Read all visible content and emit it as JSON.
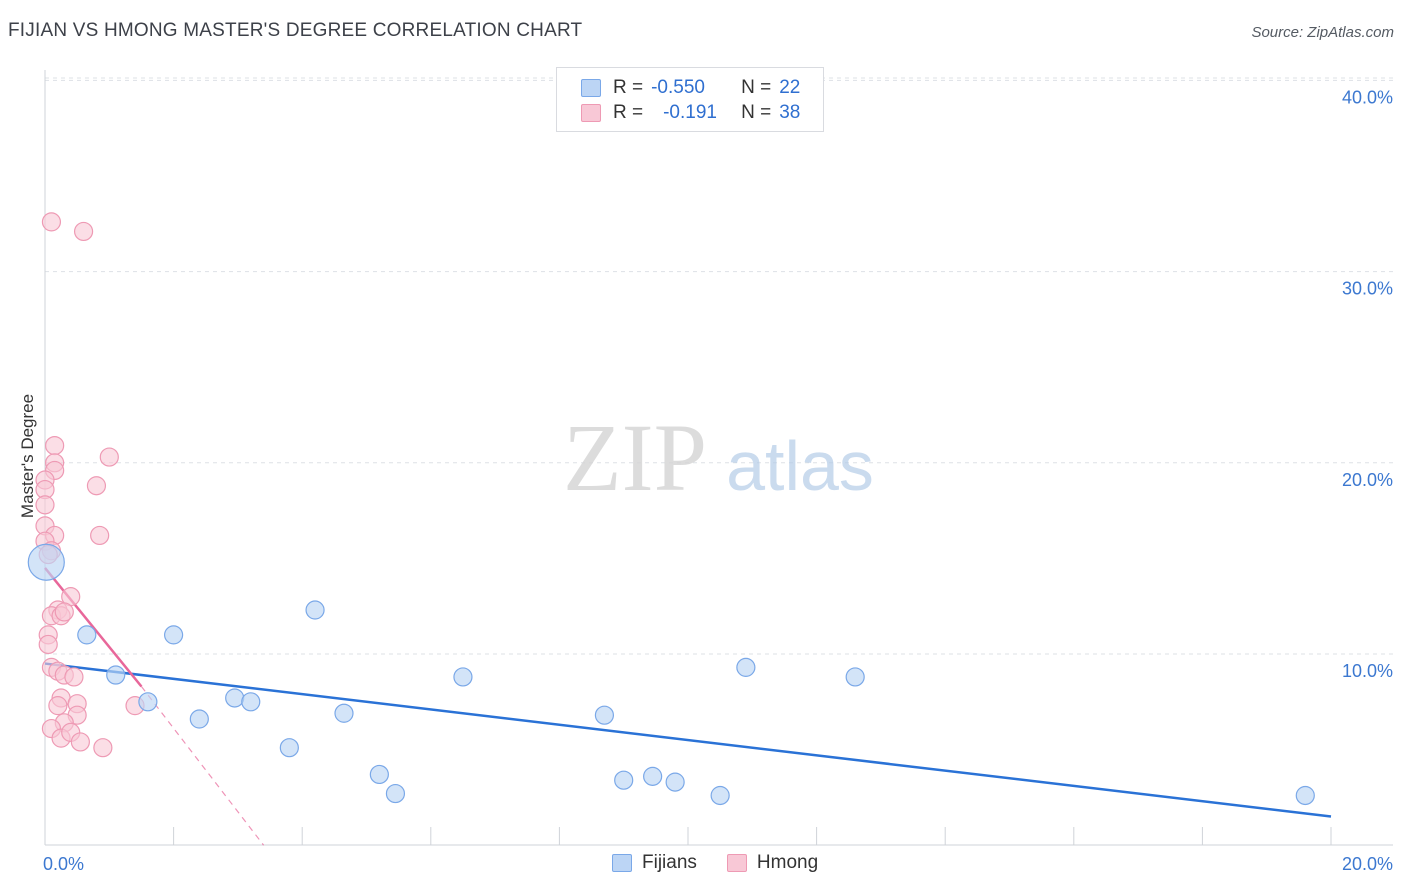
{
  "header": {
    "title": "FIJIAN VS HMONG MASTER'S DEGREE CORRELATION CHART",
    "source": "Source: ZipAtlas.com"
  },
  "watermark": {
    "zip": "ZIP",
    "atlas": "atlas"
  },
  "legend": {
    "rows": [
      {
        "r_label": "R =",
        "r_value": "-0.550",
        "n_label": "N =",
        "n_value": "22"
      },
      {
        "r_label": "R =",
        "r_value": "-0.191",
        "n_label": "N =",
        "n_value": "38"
      }
    ]
  },
  "bottom_legend": {
    "fijians": "Fijians",
    "hmong": "Hmong"
  },
  "colors": {
    "fijians_fill": "#bcd5f5",
    "fijians_stroke": "#7aa8e8",
    "fijians_line": "#2a72d6",
    "hmong_fill": "#f8c8d6",
    "hmong_stroke": "#ee9ab4",
    "hmong_line": "#e8679a",
    "tick_label": "#3c78d0",
    "grid": "#dde1e6"
  },
  "chart_data": {
    "type": "scatter",
    "title": "FIJIAN VS HMONG MASTER'S DEGREE CORRELATION CHART",
    "xlabel": "",
    "ylabel": "Master's Degree",
    "xlim": [
      0,
      20
    ],
    "ylim": [
      0,
      42
    ],
    "x_tick_labels": [
      "0.0%",
      "20.0%"
    ],
    "y_ticks": [
      10,
      20,
      30,
      40
    ],
    "y_tick_labels": [
      "10.0%",
      "20.0%",
      "30.0%",
      "40.0%"
    ],
    "grid": true,
    "series": [
      {
        "name": "Fijians",
        "points": [
          [
            0.02,
            14.8
          ],
          [
            0.65,
            11.0
          ],
          [
            1.1,
            8.9
          ],
          [
            1.6,
            7.5
          ],
          [
            2.0,
            11.0
          ],
          [
            2.4,
            6.6
          ],
          [
            2.95,
            7.7
          ],
          [
            3.2,
            7.5
          ],
          [
            3.8,
            5.1
          ],
          [
            4.2,
            12.3
          ],
          [
            4.65,
            6.9
          ],
          [
            5.2,
            3.7
          ],
          [
            5.45,
            2.7
          ],
          [
            6.5,
            8.8
          ],
          [
            8.7,
            6.8
          ],
          [
            9.0,
            3.4
          ],
          [
            9.45,
            3.6
          ],
          [
            9.8,
            3.3
          ],
          [
            10.5,
            2.6
          ],
          [
            10.9,
            9.3
          ],
          [
            12.6,
            8.8
          ],
          [
            19.6,
            2.6
          ]
        ],
        "trend": {
          "x": [
            0,
            20
          ],
          "y": [
            9.5,
            1.5
          ]
        }
      },
      {
        "name": "Hmong",
        "points": [
          [
            0.1,
            32.6
          ],
          [
            0.6,
            32.1
          ],
          [
            0.15,
            20.9
          ],
          [
            0.15,
            20.0
          ],
          [
            0.15,
            19.6
          ],
          [
            1.0,
            20.3
          ],
          [
            0.0,
            19.1
          ],
          [
            0.0,
            18.6
          ],
          [
            0.0,
            17.8
          ],
          [
            0.8,
            18.8
          ],
          [
            0.0,
            16.7
          ],
          [
            0.15,
            16.2
          ],
          [
            0.0,
            15.9
          ],
          [
            0.85,
            16.2
          ],
          [
            0.1,
            15.4
          ],
          [
            0.4,
            13.0
          ],
          [
            0.2,
            12.3
          ],
          [
            0.1,
            12.0
          ],
          [
            0.25,
            12.0
          ],
          [
            0.3,
            12.2
          ],
          [
            0.05,
            11.0
          ],
          [
            0.05,
            10.5
          ],
          [
            0.1,
            9.3
          ],
          [
            0.2,
            9.1
          ],
          [
            0.3,
            8.9
          ],
          [
            0.45,
            8.8
          ],
          [
            0.25,
            7.7
          ],
          [
            0.2,
            7.3
          ],
          [
            0.5,
            7.4
          ],
          [
            0.5,
            6.8
          ],
          [
            0.3,
            6.4
          ],
          [
            0.1,
            6.1
          ],
          [
            0.25,
            5.6
          ],
          [
            0.4,
            5.9
          ],
          [
            0.55,
            5.4
          ],
          [
            0.9,
            5.1
          ],
          [
            1.4,
            7.3
          ],
          [
            0.05,
            15.2
          ]
        ],
        "trend": {
          "x": [
            0,
            1.5
          ],
          "y": [
            14.5,
            8.3
          ]
        },
        "trend_extension": {
          "x": [
            1.5,
            3.4
          ],
          "y": [
            8.3,
            0
          ]
        }
      }
    ]
  }
}
